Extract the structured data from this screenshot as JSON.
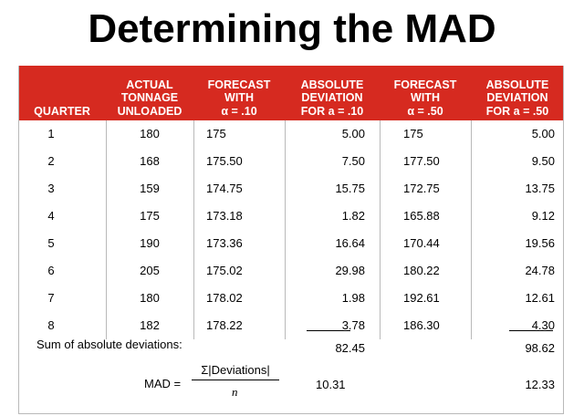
{
  "title": "Determining the MAD",
  "headers": [
    [
      "QUARTER"
    ],
    [
      "ACTUAL",
      "TONNAGE",
      "UNLOADED"
    ],
    [
      "FORECAST",
      "WITH",
      "α = .10"
    ],
    [
      "ABSOLUTE",
      "DEVIATION",
      "FOR a = .10"
    ],
    [
      "FORECAST",
      "WITH",
      "α = .50"
    ],
    [
      "ABSOLUTE",
      "DEVIATION",
      "FOR a = .50"
    ]
  ],
  "rows": [
    [
      "1",
      "180",
      "175",
      "5.00",
      "175",
      "5.00"
    ],
    [
      "2",
      "168",
      "175.50",
      "7.50",
      "177.50",
      "9.50"
    ],
    [
      "3",
      "159",
      "174.75",
      "15.75",
      "172.75",
      "13.75"
    ],
    [
      "4",
      "175",
      "173.18",
      "1.82",
      "165.88",
      "9.12"
    ],
    [
      "5",
      "190",
      "173.36",
      "16.64",
      "170.44",
      "19.56"
    ],
    [
      "6",
      "205",
      "175.02",
      "29.98",
      "180.22",
      "24.78"
    ],
    [
      "7",
      "180",
      "178.02",
      "1.98",
      "192.61",
      "12.61"
    ],
    [
      "8",
      "182",
      "178.22",
      "3.78",
      "186.30",
      "4.30"
    ]
  ],
  "sum": {
    "label": "Sum of absolute deviations:",
    "dev10": "82.45",
    "dev50": "98.62"
  },
  "mad": {
    "label": "MAD =",
    "numerator": "Σ|Deviations|",
    "denominator": "n",
    "dev10": "10.31",
    "dev50": "12.33"
  }
}
